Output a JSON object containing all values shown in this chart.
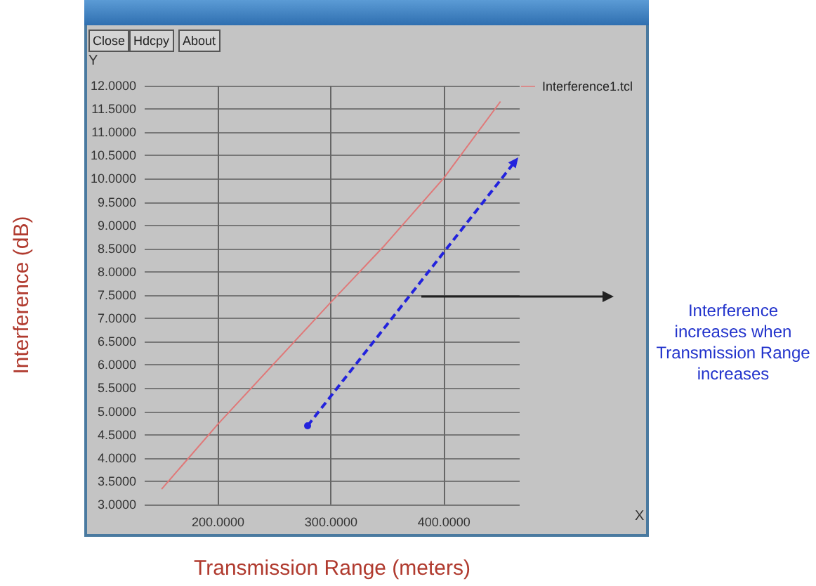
{
  "chart_data": {
    "type": "line",
    "xlabel": "Transmission Range (meters)",
    "ylabel": "Interference (dB)",
    "series": [
      {
        "name": "Interference1.tcl",
        "color": "#e07878",
        "x": [
          150,
          200,
          300,
          346,
          400,
          450
        ],
        "values": [
          3.33,
          4.73,
          7.35,
          8.53,
          10.02,
          11.66
        ]
      }
    ],
    "xlim": [
      135,
      467
    ],
    "xticks": [
      {
        "value": 200,
        "label": "200.0000"
      },
      {
        "value": 300,
        "label": "300.0000"
      },
      {
        "value": 400,
        "label": "400.0000"
      }
    ],
    "ylim": [
      3,
      12
    ],
    "yticks": [
      {
        "value": 3,
        "label": "3.0000"
      },
      {
        "value": 3.5,
        "label": "3.5000"
      },
      {
        "value": 4,
        "label": "4.0000"
      },
      {
        "value": 4.5,
        "label": "4.5000"
      },
      {
        "value": 5,
        "label": "5.0000"
      },
      {
        "value": 5.5,
        "label": "5.5000"
      },
      {
        "value": 6,
        "label": "6.0000"
      },
      {
        "value": 6.5,
        "label": "6.5000"
      },
      {
        "value": 7,
        "label": "7.0000"
      },
      {
        "value": 7.5,
        "label": "7.5000"
      },
      {
        "value": 8,
        "label": "8.0000"
      },
      {
        "value": 8.5,
        "label": "8.5000"
      },
      {
        "value": 9,
        "label": "9.0000"
      },
      {
        "value": 9.5,
        "label": "9.5000"
      },
      {
        "value": 10,
        "label": "10.0000"
      },
      {
        "value": 10.5,
        "label": "10.5000"
      },
      {
        "value": 11,
        "label": "11.0000"
      },
      {
        "value": 11.5,
        "label": "11.5000"
      },
      {
        "value": 12,
        "label": "12.0000"
      }
    ],
    "grid": true,
    "legend": "top right",
    "marker": "none",
    "line_style": "solid",
    "annotations": [
      "Close",
      "Hdcpy",
      "About",
      "Y",
      "X",
      "Interference increases when Transmission Range increases"
    ]
  }
}
